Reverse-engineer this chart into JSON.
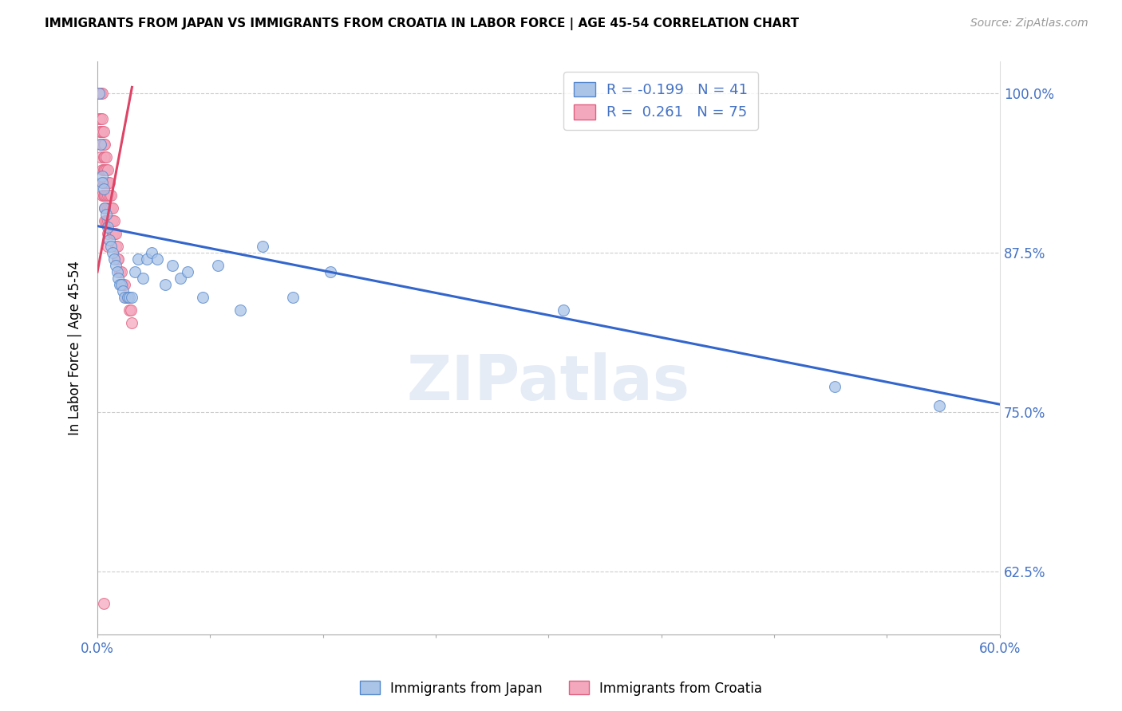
{
  "title": "IMMIGRANTS FROM JAPAN VS IMMIGRANTS FROM CROATIA IN LABOR FORCE | AGE 45-54 CORRELATION CHART",
  "source": "Source: ZipAtlas.com",
  "ylabel": "In Labor Force | Age 45-54",
  "x_min": 0.0,
  "x_max": 0.6,
  "y_min": 0.575,
  "y_max": 1.025,
  "y_ticks": [
    0.625,
    0.75,
    0.875,
    1.0
  ],
  "y_tick_labels": [
    "62.5%",
    "75.0%",
    "87.5%",
    "100.0%"
  ],
  "x_ticks": [
    0.0,
    0.075,
    0.15,
    0.225,
    0.3,
    0.375,
    0.45,
    0.525,
    0.6
  ],
  "x_tick_labels_show": [
    "0.0%",
    "",
    "",
    "",
    "",
    "",
    "",
    "",
    "60.0%"
  ],
  "legend_R_japan": "-0.199",
  "legend_N_japan": "41",
  "legend_R_croatia": "0.261",
  "legend_N_croatia": "75",
  "japan_color": "#aac4e8",
  "croatia_color": "#f4a8be",
  "japan_edge_color": "#5588cc",
  "croatia_edge_color": "#e06080",
  "japan_trend_color": "#3366cc",
  "croatia_trend_color": "#dd4466",
  "watermark": "ZIPatlas",
  "japan_x": [
    0.001,
    0.002,
    0.003,
    0.003,
    0.004,
    0.005,
    0.006,
    0.007,
    0.008,
    0.009,
    0.01,
    0.011,
    0.012,
    0.013,
    0.014,
    0.015,
    0.016,
    0.017,
    0.018,
    0.02,
    0.021,
    0.023,
    0.025,
    0.027,
    0.03,
    0.033,
    0.036,
    0.04,
    0.045,
    0.05,
    0.055,
    0.06,
    0.07,
    0.08,
    0.095,
    0.11,
    0.13,
    0.155,
    0.31,
    0.49,
    0.56
  ],
  "japan_y": [
    1.0,
    0.96,
    0.935,
    0.93,
    0.925,
    0.91,
    0.905,
    0.895,
    0.885,
    0.88,
    0.875,
    0.87,
    0.865,
    0.86,
    0.855,
    0.85,
    0.85,
    0.845,
    0.84,
    0.84,
    0.84,
    0.84,
    0.86,
    0.87,
    0.855,
    0.87,
    0.875,
    0.87,
    0.85,
    0.865,
    0.855,
    0.86,
    0.84,
    0.865,
    0.83,
    0.88,
    0.84,
    0.86,
    0.83,
    0.77,
    0.755
  ],
  "croatia_x": [
    0.0003,
    0.0005,
    0.0007,
    0.001,
    0.001,
    0.001,
    0.001,
    0.0015,
    0.0015,
    0.002,
    0.002,
    0.002,
    0.002,
    0.002,
    0.002,
    0.003,
    0.003,
    0.003,
    0.003,
    0.003,
    0.003,
    0.003,
    0.004,
    0.004,
    0.004,
    0.004,
    0.004,
    0.004,
    0.005,
    0.005,
    0.005,
    0.005,
    0.005,
    0.005,
    0.005,
    0.006,
    0.006,
    0.006,
    0.006,
    0.006,
    0.006,
    0.007,
    0.007,
    0.007,
    0.007,
    0.007,
    0.007,
    0.007,
    0.008,
    0.008,
    0.008,
    0.008,
    0.009,
    0.009,
    0.009,
    0.01,
    0.01,
    0.01,
    0.011,
    0.011,
    0.012,
    0.012,
    0.013,
    0.013,
    0.014,
    0.015,
    0.016,
    0.017,
    0.018,
    0.019,
    0.02,
    0.021,
    0.022,
    0.023,
    0.004
  ],
  "croatia_y": [
    1.0,
    1.0,
    1.0,
    1.0,
    1.0,
    1.0,
    0.98,
    1.0,
    0.97,
    1.0,
    1.0,
    0.98,
    0.97,
    0.96,
    0.95,
    1.0,
    0.98,
    0.97,
    0.96,
    0.94,
    0.93,
    0.92,
    0.97,
    0.96,
    0.95,
    0.94,
    0.93,
    0.92,
    0.96,
    0.95,
    0.94,
    0.93,
    0.92,
    0.91,
    0.9,
    0.95,
    0.94,
    0.93,
    0.92,
    0.91,
    0.9,
    0.94,
    0.93,
    0.92,
    0.91,
    0.9,
    0.89,
    0.88,
    0.93,
    0.92,
    0.91,
    0.9,
    0.92,
    0.91,
    0.9,
    0.91,
    0.9,
    0.89,
    0.9,
    0.89,
    0.89,
    0.88,
    0.88,
    0.87,
    0.87,
    0.86,
    0.86,
    0.85,
    0.85,
    0.84,
    0.84,
    0.83,
    0.83,
    0.82,
    0.6
  ],
  "japan_trend_x": [
    0.0,
    0.6
  ],
  "japan_trend_y": [
    0.896,
    0.756
  ],
  "croatia_trend_x": [
    0.0,
    0.023
  ],
  "croatia_trend_y": [
    0.86,
    1.005
  ]
}
